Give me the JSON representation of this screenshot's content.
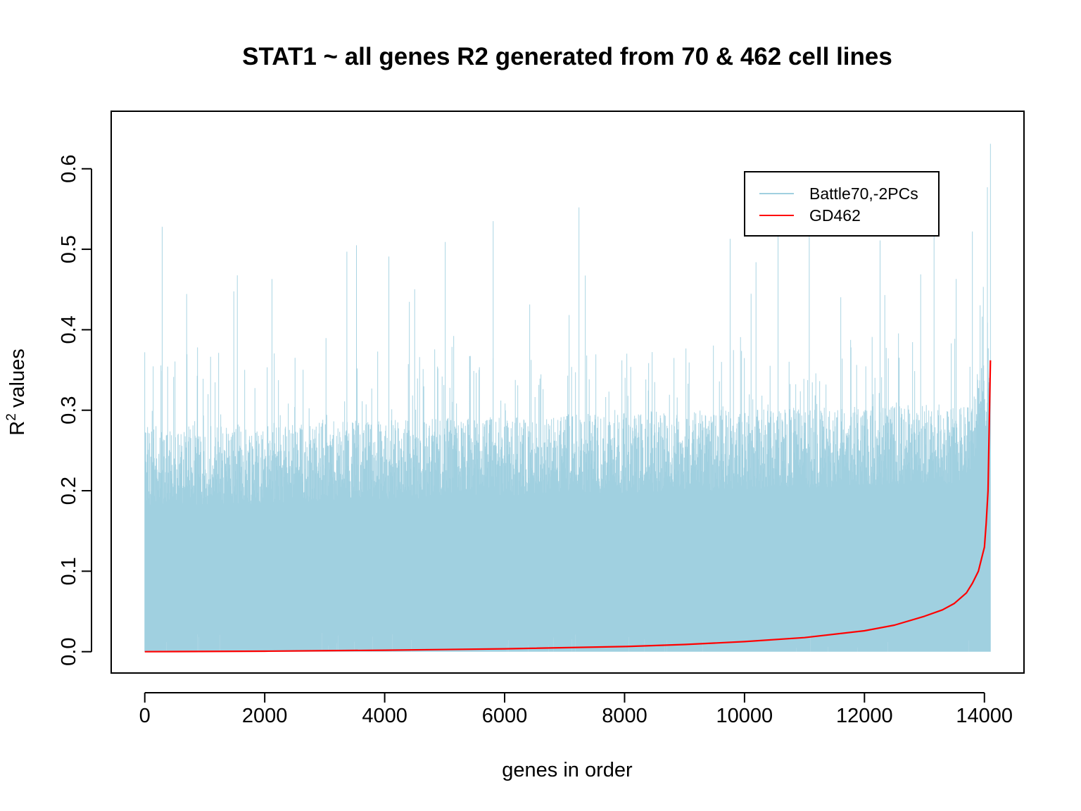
{
  "chart_data": {
    "type": "line",
    "title": "STAT1 ~ all genes R2 generated from 70 & 462 cell lines",
    "xlabel": "genes in order",
    "ylabel_main": "R",
    "ylabel_sup": "2",
    "ylabel_rest": " values",
    "xlim": [
      -560,
      14660
    ],
    "ylim": [
      -0.0265,
      0.6715
    ],
    "xticks": [
      0,
      2000,
      4000,
      6000,
      8000,
      10000,
      12000,
      14000
    ],
    "xtick_labels": [
      "0",
      "2000",
      "4000",
      "6000",
      "8000",
      "10000",
      "12000",
      "14000"
    ],
    "yticks": [
      0.0,
      0.1,
      0.2,
      0.3,
      0.4,
      0.5,
      0.6
    ],
    "ytick_labels": [
      "0.0",
      "0.1",
      "0.2",
      "0.3",
      "0.4",
      "0.5",
      "0.6"
    ],
    "legend_position": "top-right",
    "n_genes": 14100,
    "series": [
      {
        "name": "Battle70,-2PCs",
        "color": "#a0d0e0",
        "style": "dense-spikes",
        "description_values": {
          "baseline": 0.0,
          "typical_band": [
            0.0,
            0.3
          ],
          "peaks": [
            [
              0,
              0.372
            ],
            [
              290,
              0.528
            ],
            [
              2120,
              0.463
            ],
            [
              3370,
              0.497
            ],
            [
              3530,
              0.505
            ],
            [
              4070,
              0.491
            ],
            [
              5010,
              0.509
            ],
            [
              5810,
              0.535
            ],
            [
              7240,
              0.552
            ],
            [
              9760,
              0.513
            ],
            [
              10560,
              0.519
            ],
            [
              11080,
              0.517
            ],
            [
              12260,
              0.511
            ],
            [
              13160,
              0.52
            ],
            [
              13800,
              0.522
            ],
            [
              14050,
              0.577
            ],
            [
              14100,
              0.631
            ]
          ]
        }
      },
      {
        "name": "GD462",
        "color": "#ff0000",
        "style": "line",
        "x": [
          0,
          2000,
          4000,
          6000,
          8000,
          9000,
          10000,
          11000,
          12000,
          12500,
          13000,
          13300,
          13500,
          13700,
          13800,
          13900,
          13950,
          14000,
          14030,
          14060,
          14080,
          14100
        ],
        "y": [
          0.0,
          0.0006,
          0.0018,
          0.0036,
          0.0064,
          0.0089,
          0.0125,
          0.0175,
          0.026,
          0.033,
          0.044,
          0.052,
          0.06,
          0.073,
          0.085,
          0.1,
          0.115,
          0.13,
          0.16,
          0.2,
          0.28,
          0.362
        ]
      }
    ]
  }
}
